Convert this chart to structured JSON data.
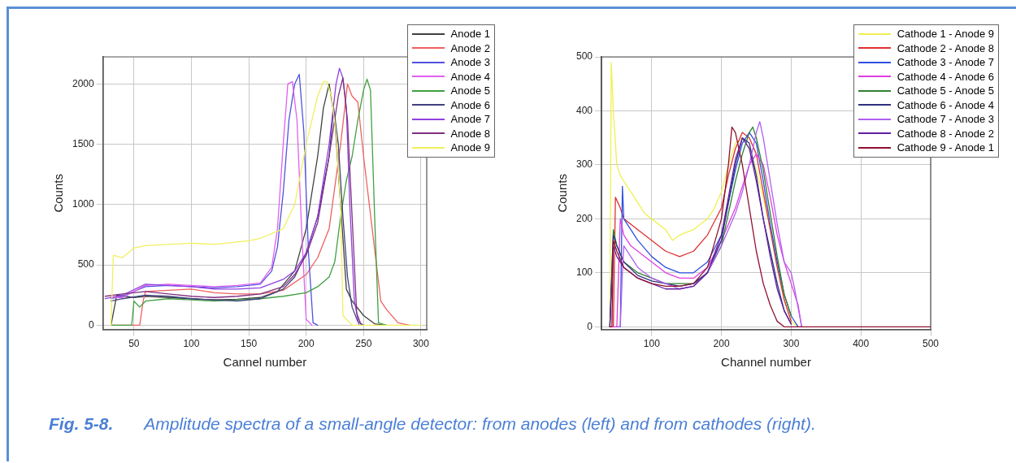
{
  "chart_data": [
    {
      "type": "line",
      "xlabel": "Cannel number",
      "ylabel": "Counts",
      "xlim": [
        23,
        305
      ],
      "xticks": [
        50,
        100,
        150,
        200,
        250,
        300
      ],
      "ylim": [
        -35,
        2225
      ],
      "yticks": [
        0,
        500,
        1000,
        1500,
        2000
      ],
      "grid": true,
      "legend": "top right",
      "line_style": "solid",
      "annotations": [
        "Fig. 5-8.",
        "Amplitude spectra of a small-angle detector: from anodes (left) and from cathodes (right)."
      ],
      "series": [
        {
          "name": "Anode 1",
          "color": "#404040",
          "x": [
            30,
            35,
            50,
            60,
            80,
            100,
            120,
            140,
            160,
            175,
            190,
            200,
            210,
            215,
            220,
            225,
            230,
            235,
            240,
            250,
            260,
            270
          ],
          "values": [
            0,
            250,
            230,
            240,
            230,
            220,
            210,
            215,
            230,
            280,
            450,
            800,
            1400,
            1800,
            2000,
            1700,
            1000,
            300,
            200,
            80,
            10,
            0
          ]
        },
        {
          "name": "Anode 2",
          "color": "#f06060",
          "x": [
            30,
            55,
            58,
            60,
            80,
            100,
            120,
            140,
            160,
            180,
            200,
            210,
            220,
            230,
            236,
            240,
            245,
            250,
            260,
            265,
            270,
            280,
            290
          ],
          "values": [
            0,
            0,
            200,
            280,
            290,
            300,
            270,
            260,
            260,
            290,
            420,
            560,
            800,
            1500,
            2000,
            1900,
            1850,
            1400,
            600,
            200,
            130,
            20,
            0
          ]
        },
        {
          "name": "Anode 3",
          "color": "#5050e0",
          "x": [
            30,
            40,
            60,
            80,
            100,
            120,
            140,
            150,
            160,
            170,
            175,
            180,
            185,
            190,
            194,
            198,
            202,
            206,
            210
          ],
          "values": [
            220,
            240,
            320,
            330,
            320,
            310,
            320,
            330,
            340,
            450,
            650,
            1100,
            1700,
            2000,
            2080,
            1600,
            600,
            20,
            0
          ]
        },
        {
          "name": "Anode 4",
          "color": "#e060f0",
          "x": [
            30,
            40,
            60,
            80,
            100,
            120,
            140,
            160,
            170,
            175,
            180,
            184,
            188,
            192,
            196,
            200,
            205
          ],
          "values": [
            230,
            230,
            330,
            340,
            330,
            320,
            330,
            350,
            480,
            800,
            1500,
            2000,
            2020,
            1700,
            800,
            50,
            0
          ]
        },
        {
          "name": "Anode 5",
          "color": "#40a040",
          "x": [
            30,
            48,
            50,
            55,
            60,
            80,
            100,
            120,
            140,
            160,
            180,
            200,
            210,
            220,
            225,
            230,
            235,
            240,
            245,
            250,
            253,
            256,
            260,
            263,
            270
          ],
          "values": [
            0,
            0,
            200,
            150,
            200,
            220,
            210,
            200,
            210,
            220,
            240,
            270,
            320,
            400,
            530,
            900,
            1200,
            1400,
            1700,
            1950,
            2040,
            1950,
            800,
            20,
            0
          ]
        },
        {
          "name": "Anode 6",
          "color": "#404080",
          "x": [
            30,
            40,
            60,
            80,
            100,
            120,
            140,
            160,
            170,
            180,
            190,
            200,
            210,
            220,
            224,
            228,
            232,
            236,
            240,
            245,
            250
          ],
          "values": [
            200,
            220,
            250,
            240,
            220,
            210,
            200,
            220,
            260,
            300,
            400,
            600,
            900,
            1400,
            1800,
            1500,
            900,
            400,
            150,
            30,
            0
          ]
        },
        {
          "name": "Anode 7",
          "color": "#9040e0",
          "x": [
            25,
            40,
            60,
            80,
            100,
            120,
            140,
            160,
            180,
            190,
            200,
            210,
            220,
            226,
            229,
            232,
            235,
            238,
            242,
            246
          ],
          "values": [
            220,
            250,
            340,
            330,
            320,
            300,
            300,
            310,
            380,
            450,
            600,
            900,
            1500,
            2000,
            2130,
            2050,
            1800,
            1000,
            200,
            0
          ]
        },
        {
          "name": "Anode 8",
          "color": "#803080",
          "x": [
            25,
            40,
            60,
            80,
            100,
            120,
            140,
            160,
            180,
            190,
            200,
            210,
            220,
            228,
            232,
            236,
            240,
            244,
            248
          ],
          "values": [
            240,
            260,
            280,
            260,
            240,
            230,
            240,
            260,
            320,
            420,
            580,
            850,
            1400,
            1900,
            2050,
            1700,
            900,
            100,
            0
          ]
        },
        {
          "name": "Anode 9",
          "color": "#f0f060",
          "x": [
            30,
            32,
            40,
            50,
            60,
            80,
            100,
            120,
            140,
            150,
            160,
            165,
            170,
            180,
            190,
            200,
            210,
            215,
            218,
            222,
            226,
            230,
            232,
            240,
            300
          ],
          "values": [
            0,
            580,
            560,
            640,
            660,
            670,
            680,
            670,
            690,
            700,
            720,
            740,
            760,
            800,
            1000,
            1500,
            1900,
            2020,
            2020,
            1900,
            1600,
            1000,
            80,
            0,
            0
          ]
        }
      ]
    },
    {
      "type": "line",
      "xlabel": "Channel number",
      "ylabel": "Counts",
      "xlim": [
        28,
        500
      ],
      "xticks": [
        100,
        200,
        300,
        400,
        500
      ],
      "ylim": [
        -5,
        500
      ],
      "yticks": [
        0,
        100,
        200,
        300,
        400,
        500
      ],
      "grid": true,
      "legend": "top right",
      "line_style": "solid",
      "series": [
        {
          "name": "Cathode 1 -  Anode 9",
          "color": "#f0f050",
          "x": [
            40,
            42,
            45,
            50,
            55,
            60,
            70,
            80,
            90,
            100,
            120,
            130,
            140,
            150,
            160,
            170,
            180,
            190,
            200,
            210,
            220,
            230,
            240,
            250,
            260,
            270,
            280,
            290,
            300,
            310
          ],
          "values": [
            0,
            490,
            400,
            300,
            280,
            270,
            250,
            230,
            210,
            200,
            180,
            160,
            170,
            175,
            180,
            190,
            200,
            220,
            250,
            300,
            340,
            350,
            330,
            290,
            240,
            180,
            110,
            50,
            10,
            0
          ]
        },
        {
          "name": "Cathode 2 -  Anode 8",
          "color": "#e03030",
          "x": [
            40,
            45,
            48,
            55,
            60,
            70,
            80,
            100,
            120,
            140,
            160,
            180,
            200,
            210,
            220,
            230,
            240,
            250,
            260,
            270,
            280,
            290,
            300
          ],
          "values": [
            0,
            0,
            240,
            220,
            200,
            190,
            180,
            160,
            140,
            130,
            140,
            170,
            220,
            280,
            330,
            360,
            350,
            320,
            250,
            180,
            110,
            50,
            10
          ]
        },
        {
          "name": "Cathode 3 -  Anode 7",
          "color": "#3050e0",
          "x": [
            50,
            55,
            58,
            60,
            70,
            80,
            100,
            120,
            140,
            160,
            180,
            200,
            210,
            220,
            230,
            240,
            250,
            260,
            270,
            280,
            290,
            300,
            310
          ],
          "values": [
            0,
            0,
            260,
            200,
            180,
            160,
            130,
            110,
            100,
            100,
            120,
            170,
            230,
            290,
            340,
            360,
            340,
            270,
            190,
            120,
            60,
            20,
            0
          ]
        },
        {
          "name": "Cathode 4 -  Anode 6",
          "color": "#e040e0",
          "x": [
            40,
            50,
            55,
            60,
            70,
            80,
            100,
            120,
            140,
            160,
            180,
            200,
            220,
            230,
            240,
            250,
            260,
            270,
            280,
            290,
            300,
            310,
            315
          ],
          "values": [
            0,
            0,
            200,
            170,
            150,
            140,
            120,
            100,
            90,
            90,
            110,
            160,
            220,
            260,
            300,
            320,
            300,
            240,
            170,
            120,
            80,
            40,
            0
          ]
        },
        {
          "name": "Cathode 5 -  Anode 5",
          "color": "#308030",
          "x": [
            40,
            45,
            50,
            60,
            80,
            100,
            120,
            140,
            160,
            180,
            200,
            210,
            220,
            230,
            240,
            245,
            250,
            260,
            270,
            280,
            290,
            300
          ],
          "values": [
            0,
            180,
            150,
            120,
            100,
            90,
            80,
            80,
            80,
            100,
            150,
            210,
            270,
            320,
            360,
            370,
            350,
            290,
            210,
            130,
            60,
            20
          ]
        },
        {
          "name": "Cathode 6 -  Anode 4",
          "color": "#303080",
          "x": [
            40,
            45,
            50,
            60,
            80,
            100,
            120,
            140,
            160,
            180,
            200,
            210,
            220,
            230,
            240,
            250,
            260,
            270,
            280,
            290,
            300
          ],
          "values": [
            0,
            170,
            150,
            120,
            95,
            85,
            80,
            75,
            80,
            100,
            160,
            230,
            300,
            350,
            340,
            280,
            200,
            140,
            80,
            30,
            5
          ]
        },
        {
          "name": "Cathode 7 -  Anode 3",
          "color": "#b060f0",
          "x": [
            50,
            55,
            58,
            60,
            70,
            80,
            100,
            120,
            140,
            160,
            180,
            200,
            220,
            230,
            240,
            250,
            255,
            260,
            270,
            280,
            290,
            300,
            305,
            315
          ],
          "values": [
            0,
            0,
            100,
            150,
            130,
            110,
            90,
            80,
            70,
            75,
            100,
            150,
            210,
            250,
            300,
            360,
            380,
            350,
            270,
            190,
            120,
            100,
            70,
            0
          ]
        },
        {
          "name": "Cathode 8 -  Anode 2",
          "color": "#6020a0",
          "x": [
            40,
            45,
            50,
            60,
            80,
            100,
            120,
            140,
            160,
            180,
            200,
            210,
            220,
            230,
            240,
            250,
            260,
            270,
            280,
            290,
            300
          ],
          "values": [
            0,
            150,
            130,
            110,
            90,
            80,
            70,
            70,
            75,
            100,
            170,
            240,
            310,
            350,
            330,
            270,
            200,
            130,
            70,
            30,
            5
          ]
        },
        {
          "name": "Cathode 9 -  Anode 1",
          "color": "#901030",
          "x": [
            40,
            43,
            45,
            50,
            60,
            80,
            100,
            120,
            140,
            160,
            180,
            200,
            210,
            215,
            220,
            230,
            240,
            250,
            260,
            270,
            280,
            290,
            295,
            320,
            500
          ],
          "values": [
            0,
            0,
            160,
            140,
            110,
            90,
            80,
            75,
            75,
            80,
            110,
            200,
            300,
            370,
            360,
            300,
            220,
            140,
            80,
            40,
            10,
            0,
            0,
            0,
            0
          ]
        }
      ]
    }
  ]
}
